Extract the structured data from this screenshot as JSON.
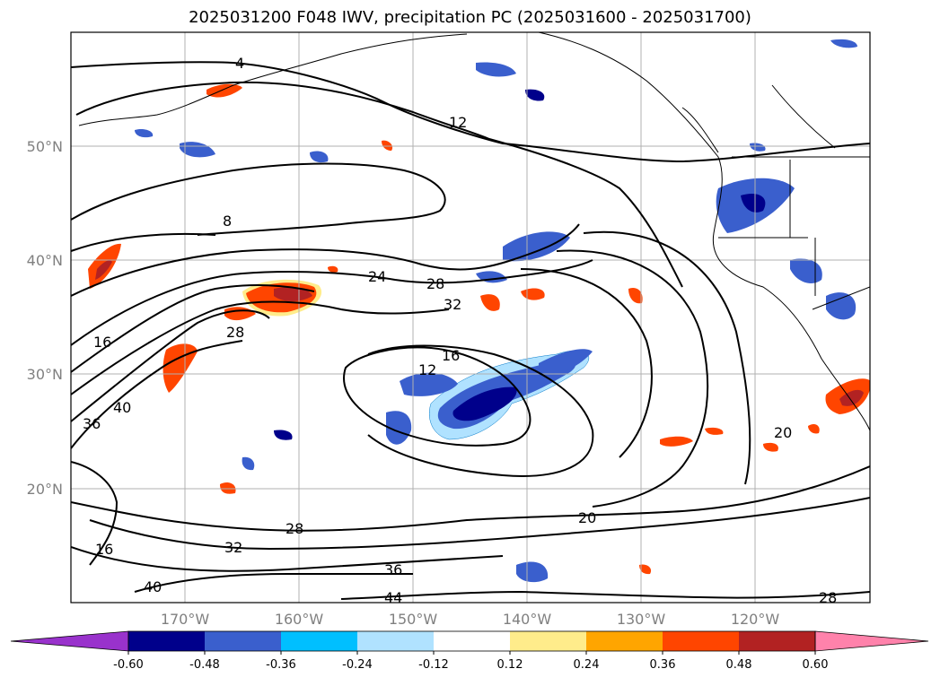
{
  "title": "2025031200 F048 IWV, precipitation PC (2025031600 - 2025031700)",
  "lat_ticks": [
    "50°N",
    "40°N",
    "30°N",
    "20°N"
  ],
  "lon_ticks": [
    "170°W",
    "160°W",
    "150°W",
    "140°W",
    "130°W",
    "120°W"
  ],
  "colorbar": {
    "colors": [
      "#9932CC",
      "#00008B",
      "#3A5FCD",
      "#00BFFF",
      "#B0E2FF",
      "#FFFFFF",
      "#FFEC8B",
      "#FFA500",
      "#FF4500",
      "#B22222",
      "#FF82AB"
    ],
    "labels": [
      "-0.60",
      "-0.48",
      "-0.36",
      "-0.24",
      "-0.12",
      "0.12",
      "0.24",
      "0.36",
      "0.48",
      "0.60"
    ]
  },
  "contour_labels": [
    "4",
    "12",
    "8",
    "24",
    "28",
    "32",
    "16",
    "28",
    "16",
    "12",
    "40",
    "36",
    "20",
    "28",
    "32",
    "36",
    "40",
    "44",
    "28",
    "20",
    "16"
  ]
}
